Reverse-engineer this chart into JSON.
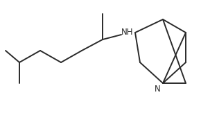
{
  "bg_color": "#ffffff",
  "line_color": "#2a2a2a",
  "line_width": 1.4,
  "font_size": 8.5,
  "figsize": [
    2.9,
    1.63
  ],
  "dpi": 100,
  "NH_label": "NH",
  "N_label": "N"
}
